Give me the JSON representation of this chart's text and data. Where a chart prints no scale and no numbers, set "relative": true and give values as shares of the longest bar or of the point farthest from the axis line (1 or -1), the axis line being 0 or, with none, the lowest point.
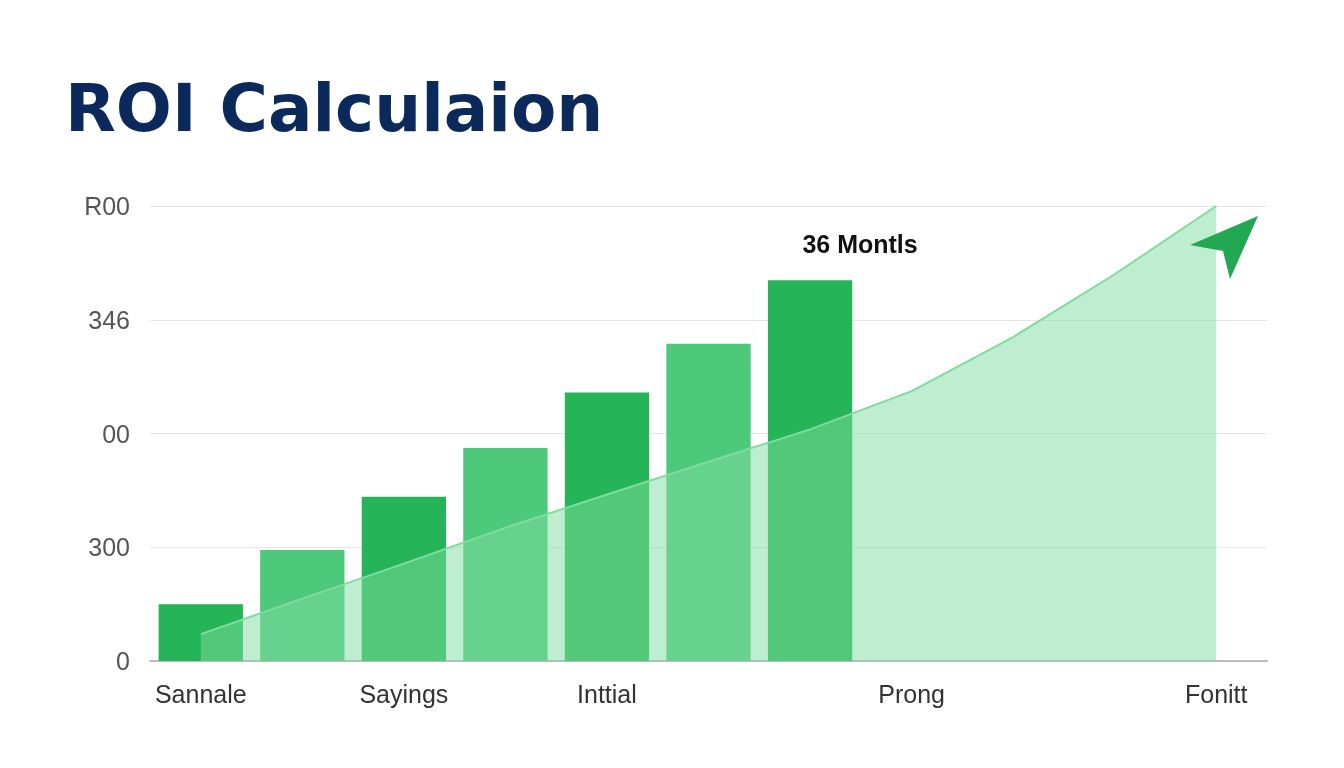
{
  "chart_data": {
    "type": "bar",
    "title": "ROI Calculaion",
    "relative": true,
    "categories": [
      "Sannale",
      null,
      "Sayings",
      null,
      "Inttial",
      null,
      null,
      "Prong",
      null,
      null,
      "Fonitt"
    ],
    "series": [
      {
        "type": "area",
        "color": "#7fdc9f",
        "values": [
          0.059,
          0.137,
          0.214,
          0.293,
          0.366,
          0.438,
          0.509,
          0.593,
          0.712,
          0.85,
          1
        ]
      },
      {
        "colors": [
          "#25b457",
          "#4cc97a",
          "#25b457",
          "#4cc97a",
          "#25b457",
          "#4cc97a",
          "#25b457",
          null,
          null,
          null,
          null
        ],
        "values": [
          0.125,
          0.244,
          0.361,
          0.468,
          0.59,
          0.697,
          0.837,
          null,
          null,
          null,
          null
        ]
      }
    ],
    "grid": "y",
    "annotations": [
      "R00",
      "346",
      "00",
      "300",
      "0",
      "36 Montls"
    ]
  }
}
